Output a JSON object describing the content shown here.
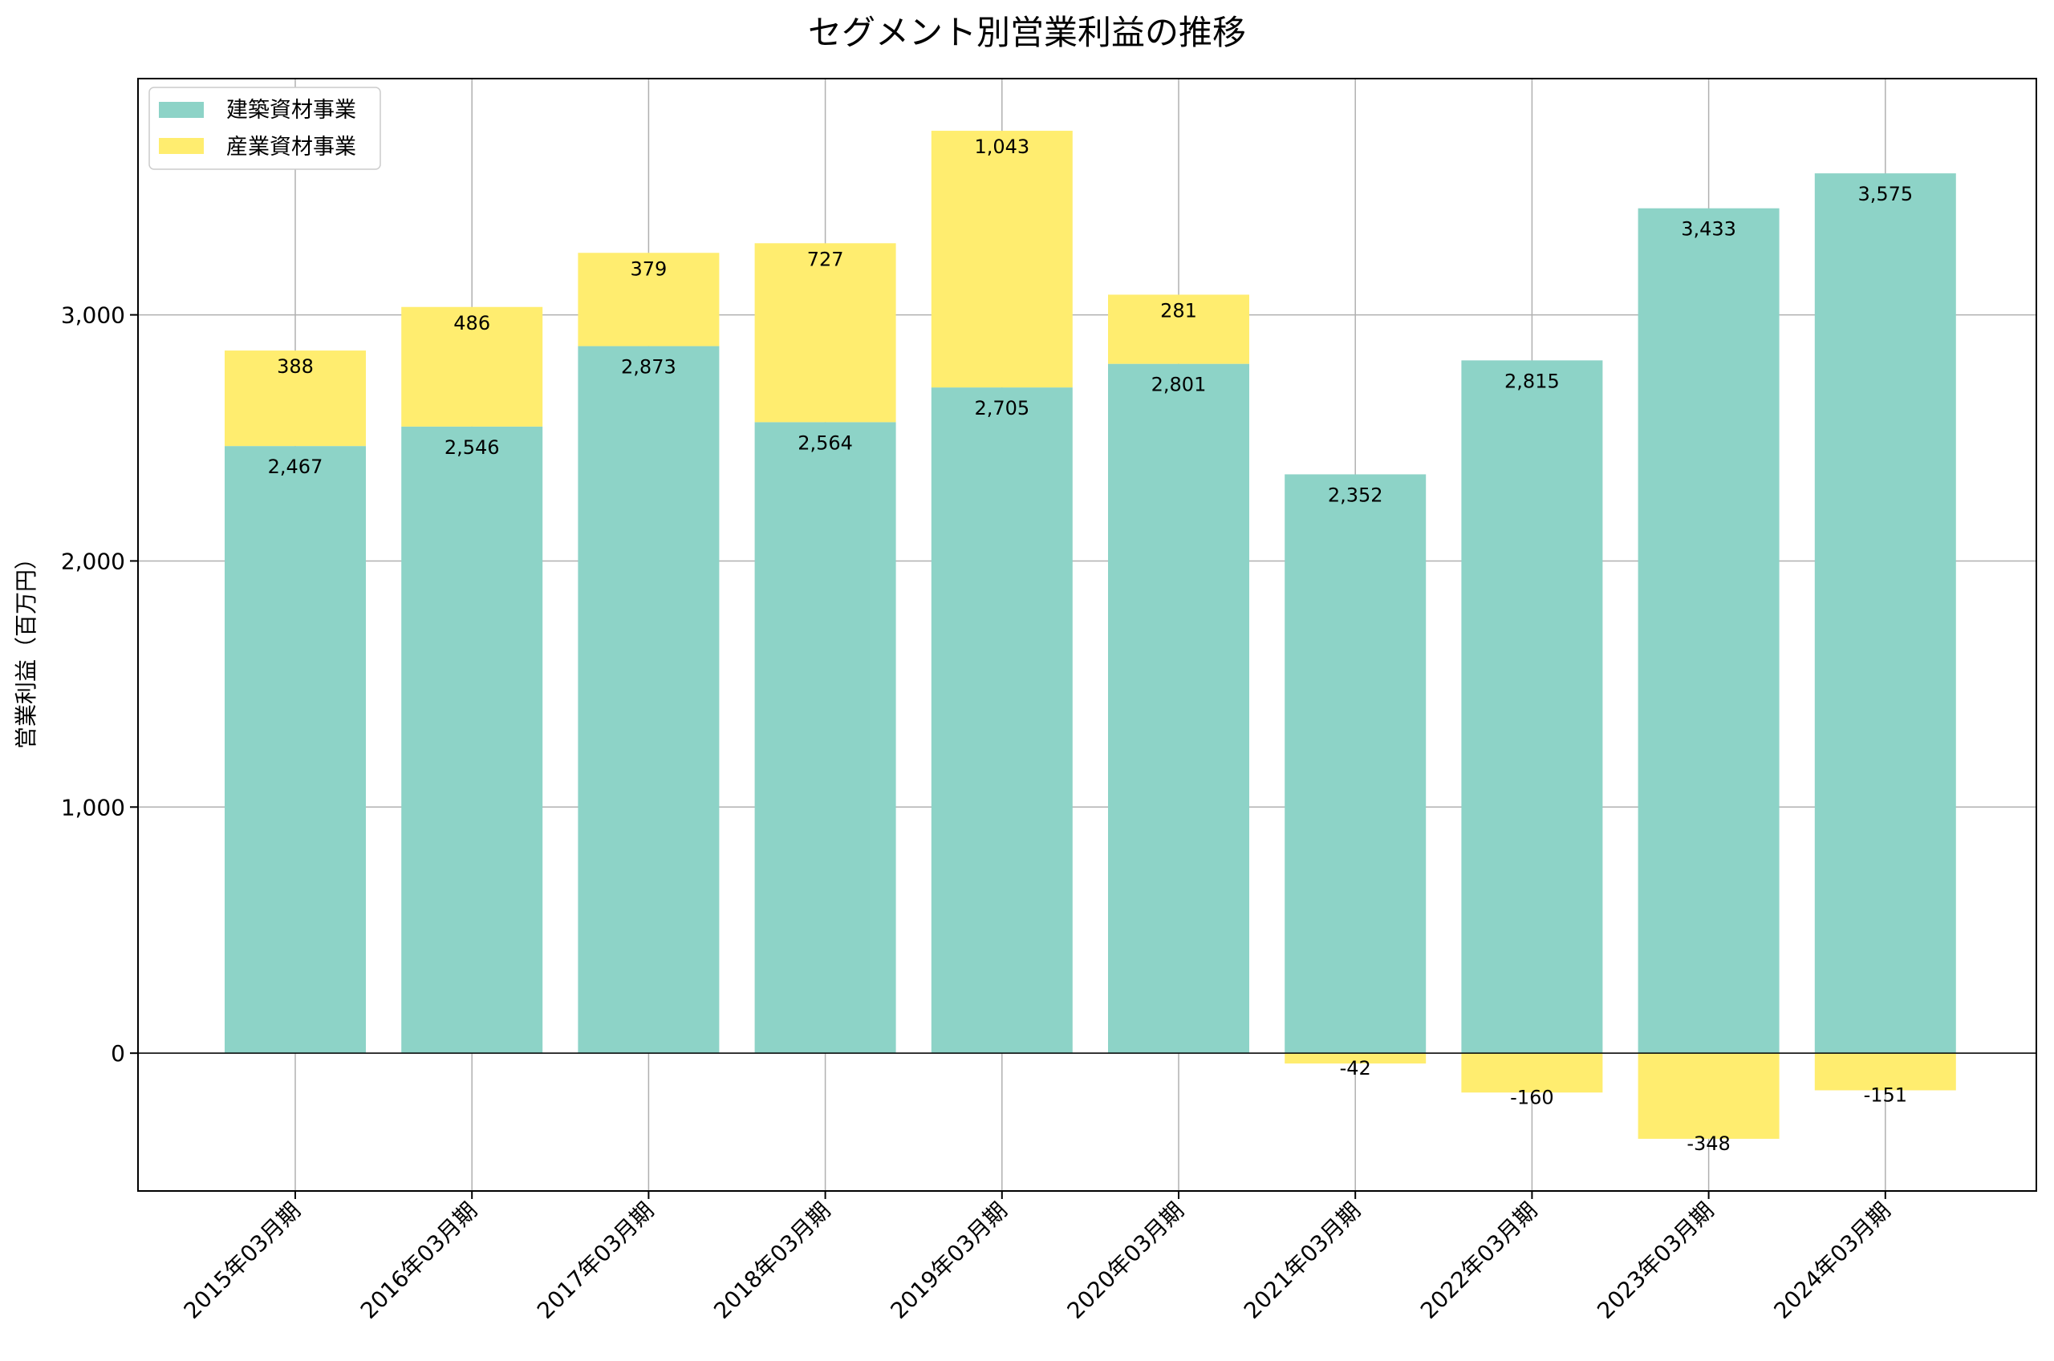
{
  "chart_data": {
    "type": "bar",
    "stacked": true,
    "title": "セグメント別営業利益の推移",
    "xlabel": "",
    "ylabel": "営業利益（百万円）",
    "ylim": [
      -560,
      3960
    ],
    "yticks": [
      0,
      1000,
      2000,
      3000
    ],
    "ytick_labels": [
      "0",
      "1,000",
      "2,000",
      "3,000"
    ],
    "grid": true,
    "legend_position": "top-left",
    "categories": [
      "2015年03月期",
      "2016年03月期",
      "2017年03月期",
      "2018年03月期",
      "2019年03月期",
      "2020年03月期",
      "2021年03月期",
      "2022年03月期",
      "2023年03月期",
      "2024年03月期"
    ],
    "series": [
      {
        "name": "建築資材事業",
        "color": "#8dd3c7",
        "values": [
          2467,
          2546,
          2873,
          2564,
          2705,
          2801,
          2352,
          2815,
          3433,
          3575
        ],
        "labels": [
          "2,467",
          "2,546",
          "2,873",
          "2,564",
          "2,705",
          "2,801",
          "2,352",
          "2,815",
          "3,433",
          "3,575"
        ]
      },
      {
        "name": "産業資材事業",
        "color": "#ffed6f",
        "values": [
          388,
          486,
          379,
          727,
          1043,
          281,
          -42,
          -160,
          -348,
          -151
        ],
        "labels": [
          "388",
          "486",
          "379",
          "727",
          "1,043",
          "281",
          "-42",
          "-160",
          "-348",
          "-151"
        ]
      }
    ]
  }
}
